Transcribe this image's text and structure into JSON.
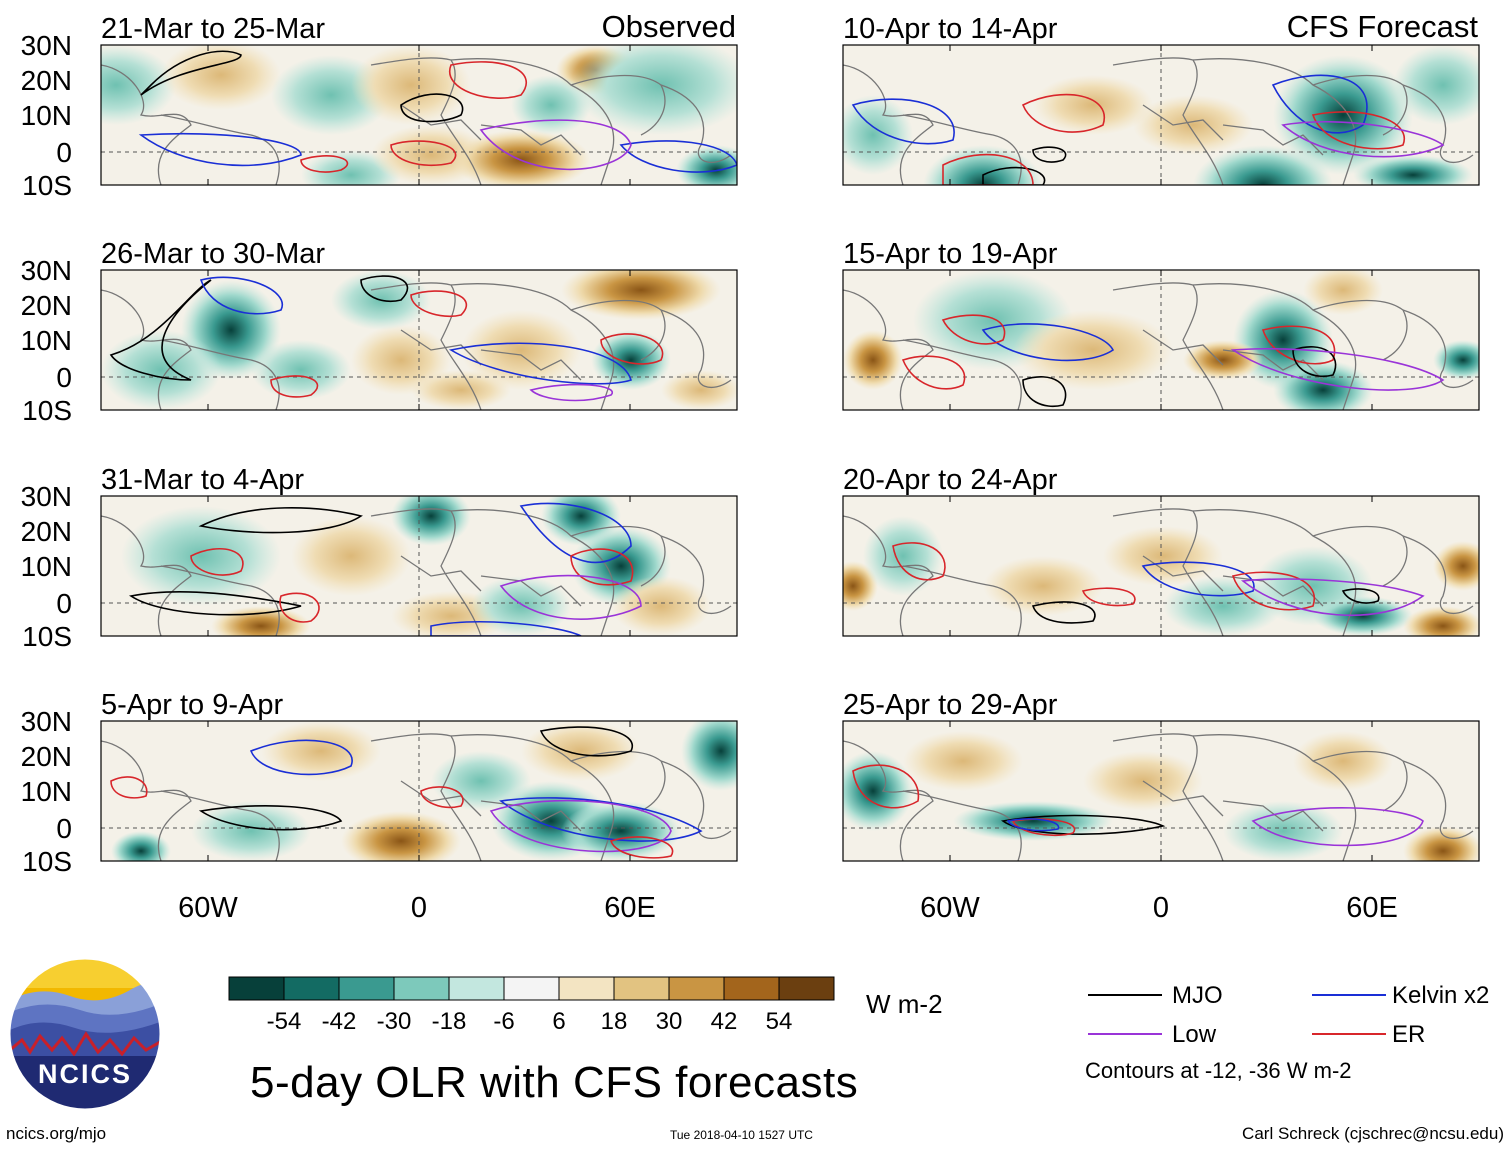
{
  "figure": {
    "title": "5-day OLR with CFS forecasts",
    "units": "W m-2",
    "contour_note": "Contours at -12, -36 W m-2",
    "footer_left": "ncics.org/mjo",
    "footer_timestamp": "Tue 2018-04-10 1527 UTC",
    "footer_right": "Carl Schreck (cjschrec@ncsu.edu)",
    "logo_text": "NCICS"
  },
  "columns": {
    "left_label": "Observed",
    "right_label": "CFS Forecast"
  },
  "latitude_ticks": [
    "30N",
    "20N",
    "10N",
    "0",
    "10S"
  ],
  "longitude_ticks": [
    "60W",
    "0",
    "60E"
  ],
  "panels": [
    {
      "title": "21-Mar to 25-Mar",
      "column": "observed"
    },
    {
      "title": "26-Mar to 30-Mar",
      "column": "observed"
    },
    {
      "title": "31-Mar to 4-Apr",
      "column": "observed"
    },
    {
      "title": "5-Apr to 9-Apr",
      "column": "observed"
    },
    {
      "title": "10-Apr to 14-Apr",
      "column": "forecast"
    },
    {
      "title": "15-Apr to 19-Apr",
      "column": "forecast"
    },
    {
      "title": "20-Apr to 24-Apr",
      "column": "forecast"
    },
    {
      "title": "25-Apr to 29-Apr",
      "column": "forecast"
    }
  ],
  "colorbar": {
    "colors": [
      "#07403a",
      "#136b63",
      "#3a9a90",
      "#7dc9bb",
      "#c3e7df",
      "#f4f4f4",
      "#f3e4c2",
      "#e2c381",
      "#c99543",
      "#a3651c",
      "#6b3f10"
    ],
    "labels": [
      "-54",
      "-42",
      "-30",
      "-18",
      "-6",
      "6",
      "18",
      "30",
      "42",
      "54"
    ]
  },
  "legend": [
    {
      "label": "MJO",
      "color": "#000000"
    },
    {
      "label": "Kelvin x2",
      "color": "#1a2fd6"
    },
    {
      "label": "Low",
      "color": "#9a34d8"
    },
    {
      "label": "ER",
      "color": "#d8262b"
    }
  ]
}
